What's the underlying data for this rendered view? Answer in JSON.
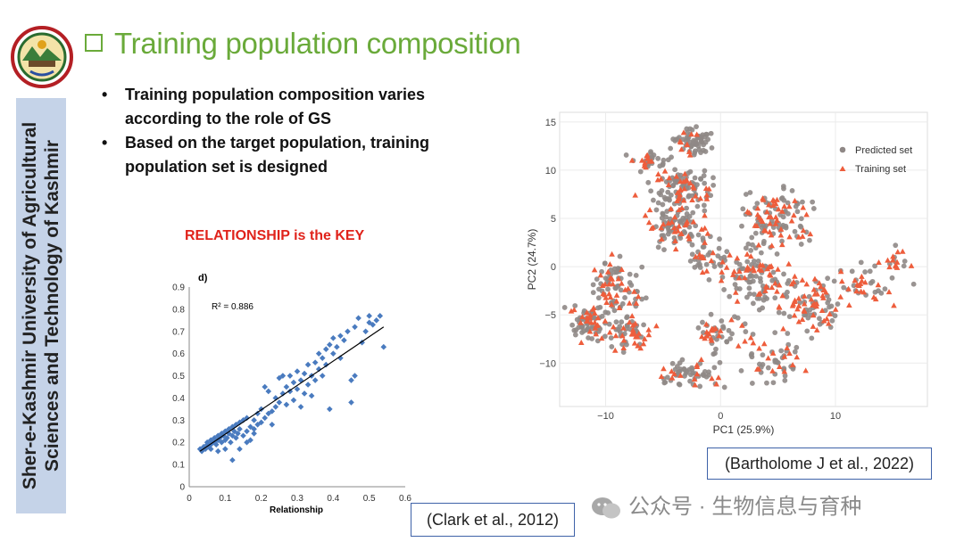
{
  "sidebar": {
    "institution": "Sher-e-Kashmir University of Agricultural Sciences and Technology of Kashmir"
  },
  "slide": {
    "title": "Training population composition",
    "bullets": [
      "Training population composition varies according to the role of GS",
      "Based on the target population, training population set is designed"
    ],
    "key_text": "RELATIONSHIP is the KEY"
  },
  "citations": {
    "left": "(Clark et al., 2012)",
    "right": "(Bartholome J et al., 2022)"
  },
  "watermark": {
    "text": "公众号 · 生物信息与育种"
  },
  "colors": {
    "title_green": "#6aaa3a",
    "key_red": "#e0231b",
    "sidebar_bg": "#c5d3e8",
    "scatter_blue": "#4a7bbf",
    "predicted": "#8f8886",
    "training": "#ee5d3c"
  },
  "chart_data": [
    {
      "type": "scatter",
      "panel_label": "d)",
      "xlabel": "Relationship",
      "ylabel": "",
      "xlim": [
        0,
        0.6
      ],
      "ylim": [
        0,
        0.9
      ],
      "xticks": [
        "0",
        "0.1",
        "0.2",
        "0.3",
        "0.4",
        "0.5",
        "0.6"
      ],
      "yticks": [
        "0",
        "0.1",
        "0.2",
        "0.3",
        "0.4",
        "0.5",
        "0.6",
        "0.7",
        "0.8",
        "0.9"
      ],
      "annotation": "R² = 0.886",
      "trendline": [
        [
          0.03,
          0.16
        ],
        [
          0.54,
          0.72
        ]
      ],
      "points": [
        [
          0.03,
          0.17
        ],
        [
          0.035,
          0.16
        ],
        [
          0.04,
          0.18
        ],
        [
          0.045,
          0.17
        ],
        [
          0.05,
          0.19
        ],
        [
          0.05,
          0.2
        ],
        [
          0.055,
          0.18
        ],
        [
          0.06,
          0.21
        ],
        [
          0.06,
          0.19
        ],
        [
          0.065,
          0.2
        ],
        [
          0.07,
          0.22
        ],
        [
          0.07,
          0.2
        ],
        [
          0.075,
          0.19
        ],
        [
          0.08,
          0.23
        ],
        [
          0.08,
          0.21
        ],
        [
          0.085,
          0.22
        ],
        [
          0.09,
          0.2
        ],
        [
          0.09,
          0.24
        ],
        [
          0.095,
          0.23
        ],
        [
          0.1,
          0.25
        ],
        [
          0.1,
          0.21
        ],
        [
          0.105,
          0.22
        ],
        [
          0.11,
          0.26
        ],
        [
          0.11,
          0.24
        ],
        [
          0.115,
          0.2
        ],
        [
          0.12,
          0.27
        ],
        [
          0.12,
          0.23
        ],
        [
          0.125,
          0.25
        ],
        [
          0.13,
          0.28
        ],
        [
          0.13,
          0.22
        ],
        [
          0.135,
          0.24
        ],
        [
          0.14,
          0.29
        ],
        [
          0.14,
          0.26
        ],
        [
          0.15,
          0.3
        ],
        [
          0.15,
          0.23
        ],
        [
          0.16,
          0.25
        ],
        [
          0.16,
          0.31
        ],
        [
          0.17,
          0.27
        ],
        [
          0.17,
          0.21
        ],
        [
          0.18,
          0.3
        ],
        [
          0.18,
          0.26
        ],
        [
          0.19,
          0.33
        ],
        [
          0.19,
          0.28
        ],
        [
          0.2,
          0.35
        ],
        [
          0.2,
          0.29
        ],
        [
          0.21,
          0.31
        ],
        [
          0.21,
          0.45
        ],
        [
          0.22,
          0.33
        ],
        [
          0.22,
          0.43
        ],
        [
          0.23,
          0.34
        ],
        [
          0.23,
          0.28
        ],
        [
          0.24,
          0.36
        ],
        [
          0.24,
          0.4
        ],
        [
          0.25,
          0.38
        ],
        [
          0.25,
          0.49
        ],
        [
          0.26,
          0.42
        ],
        [
          0.26,
          0.5
        ],
        [
          0.27,
          0.45
        ],
        [
          0.27,
          0.37
        ],
        [
          0.28,
          0.43
        ],
        [
          0.28,
          0.5
        ],
        [
          0.29,
          0.47
        ],
        [
          0.29,
          0.39
        ],
        [
          0.3,
          0.44
        ],
        [
          0.3,
          0.52
        ],
        [
          0.31,
          0.48
        ],
        [
          0.31,
          0.36
        ],
        [
          0.32,
          0.51
        ],
        [
          0.32,
          0.42
        ],
        [
          0.33,
          0.46
        ],
        [
          0.33,
          0.55
        ],
        [
          0.34,
          0.5
        ],
        [
          0.34,
          0.41
        ],
        [
          0.35,
          0.56
        ],
        [
          0.35,
          0.48
        ],
        [
          0.36,
          0.53
        ],
        [
          0.36,
          0.6
        ],
        [
          0.37,
          0.58
        ],
        [
          0.37,
          0.5
        ],
        [
          0.38,
          0.62
        ],
        [
          0.38,
          0.55
        ],
        [
          0.39,
          0.35
        ],
        [
          0.39,
          0.64
        ],
        [
          0.4,
          0.6
        ],
        [
          0.4,
          0.67
        ],
        [
          0.41,
          0.63
        ],
        [
          0.42,
          0.68
        ],
        [
          0.42,
          0.58
        ],
        [
          0.43,
          0.66
        ],
        [
          0.44,
          0.7
        ],
        [
          0.45,
          0.38
        ],
        [
          0.45,
          0.48
        ],
        [
          0.46,
          0.5
        ],
        [
          0.46,
          0.72
        ],
        [
          0.47,
          0.76
        ],
        [
          0.48,
          0.65
        ],
        [
          0.49,
          0.7
        ],
        [
          0.5,
          0.74
        ],
        [
          0.5,
          0.77
        ],
        [
          0.51,
          0.73
        ],
        [
          0.52,
          0.75
        ],
        [
          0.53,
          0.77
        ],
        [
          0.54,
          0.63
        ],
        [
          0.12,
          0.12
        ],
        [
          0.14,
          0.17
        ],
        [
          0.1,
          0.17
        ],
        [
          0.16,
          0.2
        ],
        [
          0.08,
          0.16
        ],
        [
          0.06,
          0.17
        ],
        [
          0.18,
          0.24
        ]
      ]
    },
    {
      "type": "scatter",
      "xlabel": "PC1 (25.9%)",
      "ylabel": "PC2 (24.7%)",
      "xlim": [
        -14,
        18
      ],
      "ylim": [
        -14.5,
        16
      ],
      "xticks": [
        "−10",
        "0",
        "10"
      ],
      "yticks": [
        "15",
        "10",
        "5",
        "0",
        "−5",
        "−10"
      ],
      "legend": [
        "Predicted set",
        "Training set"
      ],
      "legend_position": "top-right",
      "clusters": [
        {
          "cx": -2.5,
          "cy": 13,
          "sx": 1.2,
          "sy": 1.0,
          "n": 70,
          "tf": 0.2
        },
        {
          "cx": -6,
          "cy": 11,
          "sx": 1.0,
          "sy": 0.8,
          "n": 35,
          "tf": 0.3
        },
        {
          "cx": -3,
          "cy": 8,
          "sx": 2.2,
          "sy": 1.4,
          "n": 110,
          "tf": 0.3
        },
        {
          "cx": -4,
          "cy": 4,
          "sx": 1.8,
          "sy": 1.5,
          "n": 100,
          "tf": 0.3
        },
        {
          "cx": 5,
          "cy": 5,
          "sx": 2.2,
          "sy": 2.2,
          "n": 120,
          "tf": 0.4
        },
        {
          "cx": 3,
          "cy": -1,
          "sx": 2.0,
          "sy": 2.0,
          "n": 110,
          "tf": 0.4
        },
        {
          "cx": 8,
          "cy": -4,
          "sx": 2.0,
          "sy": 2.0,
          "n": 90,
          "tf": 0.45
        },
        {
          "cx": 12,
          "cy": -2,
          "sx": 2.5,
          "sy": 1.2,
          "n": 45,
          "tf": 0.4
        },
        {
          "cx": 15,
          "cy": 0.5,
          "sx": 1.0,
          "sy": 1.2,
          "n": 20,
          "tf": 0.6
        },
        {
          "cx": -9,
          "cy": -2,
          "sx": 1.5,
          "sy": 2.0,
          "n": 90,
          "tf": 0.4
        },
        {
          "cx": -11.5,
          "cy": -6,
          "sx": 1.2,
          "sy": 1.5,
          "n": 70,
          "tf": 0.4
        },
        {
          "cx": -8,
          "cy": -7,
          "sx": 1.5,
          "sy": 1.4,
          "n": 60,
          "tf": 0.35
        },
        {
          "cx": -2.5,
          "cy": -11,
          "sx": 2.0,
          "sy": 1.0,
          "n": 60,
          "tf": 0.3
        },
        {
          "cx": 5,
          "cy": -10,
          "sx": 2.0,
          "sy": 1.6,
          "n": 50,
          "tf": 0.3
        },
        {
          "cx": 0,
          "cy": -7,
          "sx": 2.0,
          "sy": 1.4,
          "n": 50,
          "tf": 0.3
        },
        {
          "cx": -1,
          "cy": 1,
          "sx": 1.5,
          "sy": 1.5,
          "n": 40,
          "tf": 0.3
        }
      ]
    }
  ]
}
